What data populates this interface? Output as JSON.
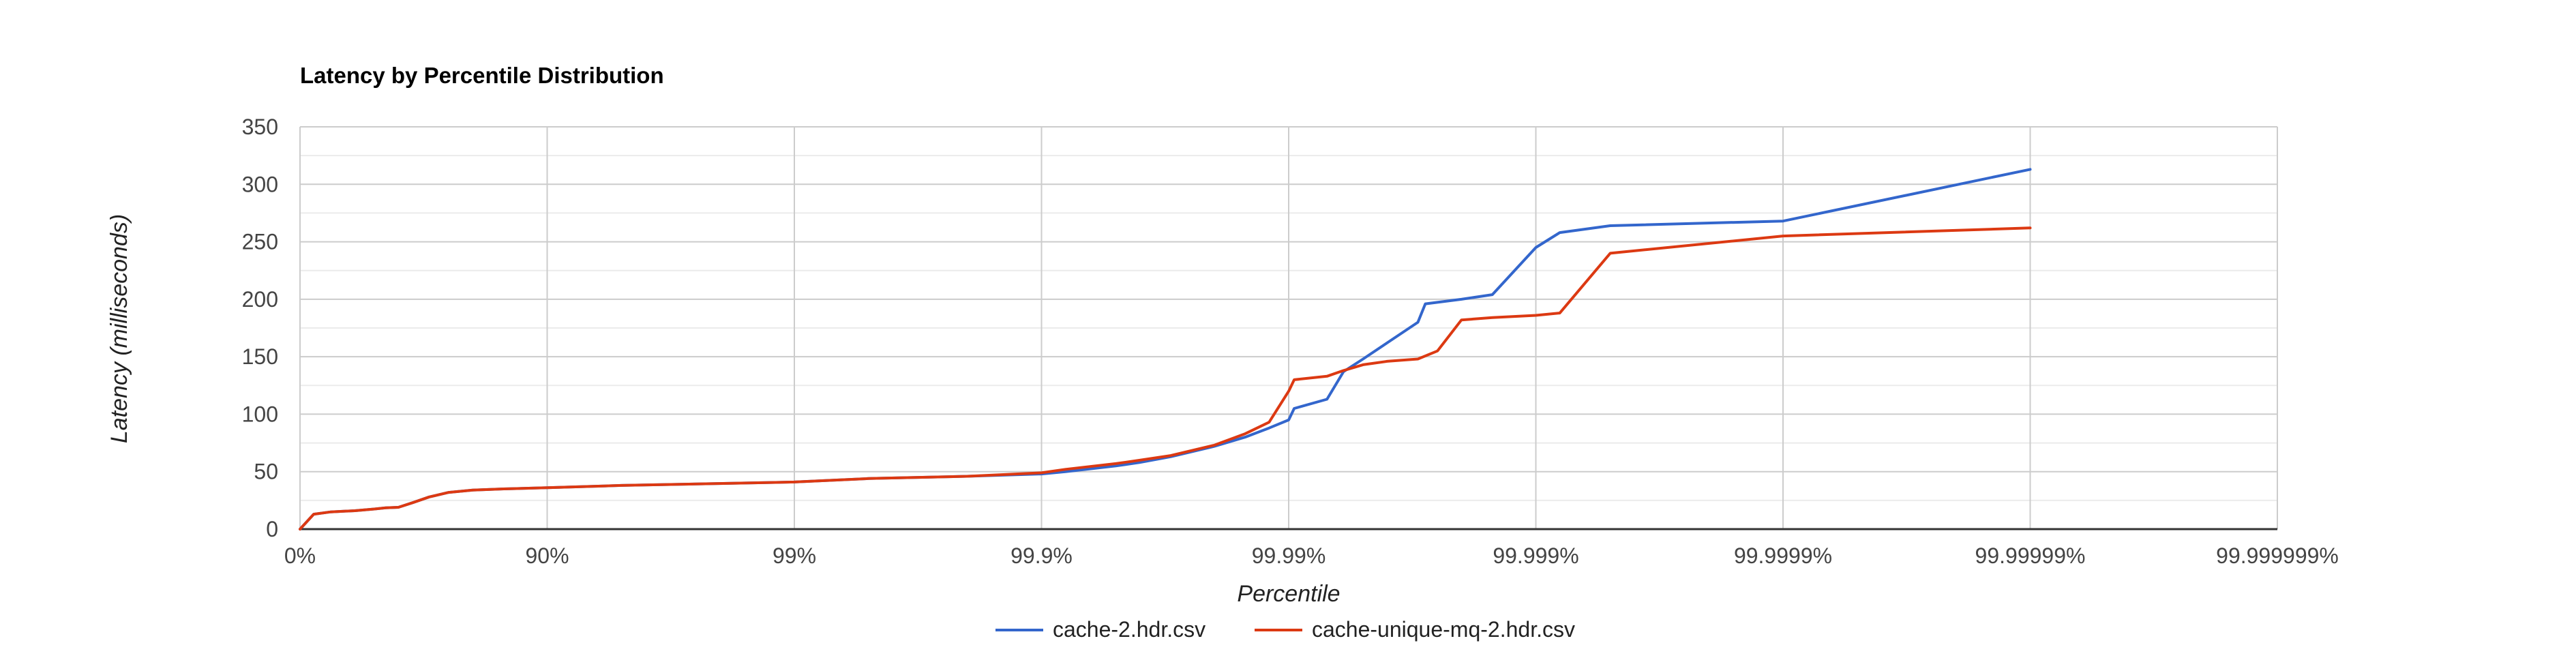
{
  "chart_data": {
    "type": "line",
    "title": "Latency by Percentile Distribution",
    "xlabel": "Percentile",
    "ylabel": "Latency (milliseconds)",
    "x_scale": "log-inverse-percentile",
    "x_ticks": [
      "0%",
      "90%",
      "99%",
      "99.9%",
      "99.99%",
      "99.999%",
      "99.9999%",
      "99.99999%",
      "99.999999%"
    ],
    "y_ticks": [
      0,
      50,
      100,
      150,
      200,
      250,
      300,
      350
    ],
    "ylim": [
      0,
      350
    ],
    "grid": true,
    "legend_position": "bottom",
    "series": [
      {
        "name": "cache-2.hdr.csv",
        "color": "#3366cc",
        "points": [
          [
            "0%",
            0
          ],
          [
            "12%",
            13
          ],
          [
            "25%",
            15
          ],
          [
            "40%",
            16
          ],
          [
            "50%",
            17.5
          ],
          [
            "55%",
            18.5
          ],
          [
            "60%",
            19
          ],
          [
            "65%",
            23
          ],
          [
            "70%",
            28
          ],
          [
            "75%",
            32
          ],
          [
            "80%",
            34
          ],
          [
            "85%",
            35
          ],
          [
            "90%",
            36
          ],
          [
            "95%",
            38
          ],
          [
            "99%",
            41
          ],
          [
            "99.5%",
            44
          ],
          [
            "99.8%",
            46
          ],
          [
            "99.9%",
            48
          ],
          [
            "99.92%",
            50
          ],
          [
            "99.95%",
            55
          ],
          [
            "99.96%",
            58
          ],
          [
            "99.97%",
            63
          ],
          [
            "99.98%",
            72
          ],
          [
            "99.985%",
            80
          ],
          [
            "99.988%",
            88
          ],
          [
            "99.99%",
            95
          ],
          [
            "99.9905%",
            105
          ],
          [
            "99.993%",
            113
          ],
          [
            "99.994%",
            137
          ],
          [
            "99.995%",
            148
          ],
          [
            "99.996%",
            162
          ],
          [
            "99.997%",
            180
          ],
          [
            "99.9972%",
            196
          ],
          [
            "99.998%",
            200
          ],
          [
            "99.9985%",
            204
          ],
          [
            "99.999%",
            245
          ],
          [
            "99.9992%",
            258
          ],
          [
            "99.9995%",
            264
          ],
          [
            "99.9999%",
            268
          ],
          [
            "99.99999%",
            313
          ]
        ]
      },
      {
        "name": "cache-unique-mq-2.hdr.csv",
        "color": "#dc3912",
        "points": [
          [
            "0%",
            0
          ],
          [
            "12%",
            13
          ],
          [
            "25%",
            15
          ],
          [
            "40%",
            16
          ],
          [
            "50%",
            17.5
          ],
          [
            "55%",
            18.5
          ],
          [
            "60%",
            19
          ],
          [
            "65%",
            23
          ],
          [
            "70%",
            28
          ],
          [
            "75%",
            32
          ],
          [
            "80%",
            34
          ],
          [
            "85%",
            35
          ],
          [
            "90%",
            36
          ],
          [
            "95%",
            38
          ],
          [
            "99%",
            41
          ],
          [
            "99.5%",
            44
          ],
          [
            "99.8%",
            46
          ],
          [
            "99.9%",
            49
          ],
          [
            "99.92%",
            52
          ],
          [
            "99.95%",
            57
          ],
          [
            "99.96%",
            60
          ],
          [
            "99.97%",
            64
          ],
          [
            "99.98%",
            73
          ],
          [
            "99.985%",
            83
          ],
          [
            "99.988%",
            93
          ],
          [
            "99.99%",
            120
          ],
          [
            "99.9905%",
            130
          ],
          [
            "99.993%",
            133
          ],
          [
            "99.994%",
            138
          ],
          [
            "99.995%",
            143
          ],
          [
            "99.996%",
            146
          ],
          [
            "99.997%",
            148
          ],
          [
            "99.9975%",
            155
          ],
          [
            "99.998%",
            182
          ],
          [
            "99.9985%",
            184
          ],
          [
            "99.999%",
            186
          ],
          [
            "99.9992%",
            188
          ],
          [
            "99.9995%",
            240
          ],
          [
            "99.9999%",
            255
          ],
          [
            "99.99999%",
            262
          ]
        ]
      }
    ]
  }
}
